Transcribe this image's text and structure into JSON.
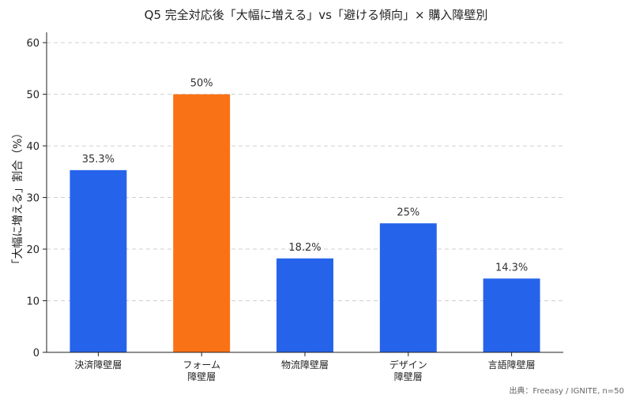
{
  "chart_data": {
    "type": "bar",
    "title": "Q5 完全対応後「大幅に増える」vs「避ける傾向」× 購入障壁別",
    "xlabel": "",
    "ylabel": "「大幅に増える」割合（%）",
    "ylim": [
      0,
      62
    ],
    "yticks": [
      0,
      10,
      20,
      30,
      40,
      50,
      60
    ],
    "grid": true,
    "categories": [
      [
        "決済障壁層"
      ],
      [
        "フォーム",
        "障壁層"
      ],
      [
        "物流障壁層"
      ],
      [
        "デザイン",
        "障壁層"
      ],
      [
        "言語障壁層"
      ]
    ],
    "values": [
      35.3,
      50,
      18.2,
      25,
      14.3
    ],
    "value_labels": [
      "35.3%",
      "50%",
      "18.2%",
      "25%",
      "14.3%"
    ],
    "colors": [
      "#2563eb",
      "#f97316",
      "#2563eb",
      "#2563eb",
      "#2563eb"
    ]
  },
  "source": "出典：Freeasy / IGNITE, n=50"
}
